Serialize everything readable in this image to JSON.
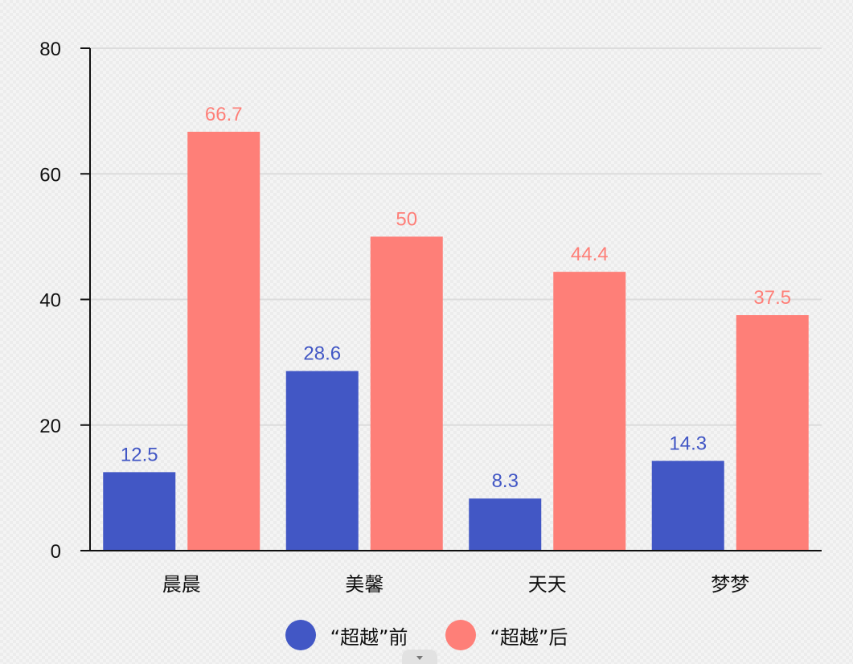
{
  "chart_data": {
    "type": "bar",
    "title": "",
    "xlabel": "",
    "ylabel": "",
    "categories": [
      "晨晨",
      "美馨",
      "天天",
      "梦梦"
    ],
    "series": [
      {
        "name": "“超越”前",
        "values": [
          12.5,
          28.6,
          8.3,
          14.3
        ],
        "color": "#4257c5"
      },
      {
        "name": "“超越”后",
        "values": [
          66.7,
          50,
          44.4,
          37.5
        ],
        "color": "#fe7f78"
      }
    ],
    "ylim": [
      0,
      80
    ],
    "yticks": [
      0,
      20,
      40,
      60,
      80
    ],
    "grid": true,
    "legend_position": "bottom-center",
    "data_labels": true
  },
  "scroll_handle": {
    "icon": "chevron-down-icon"
  }
}
